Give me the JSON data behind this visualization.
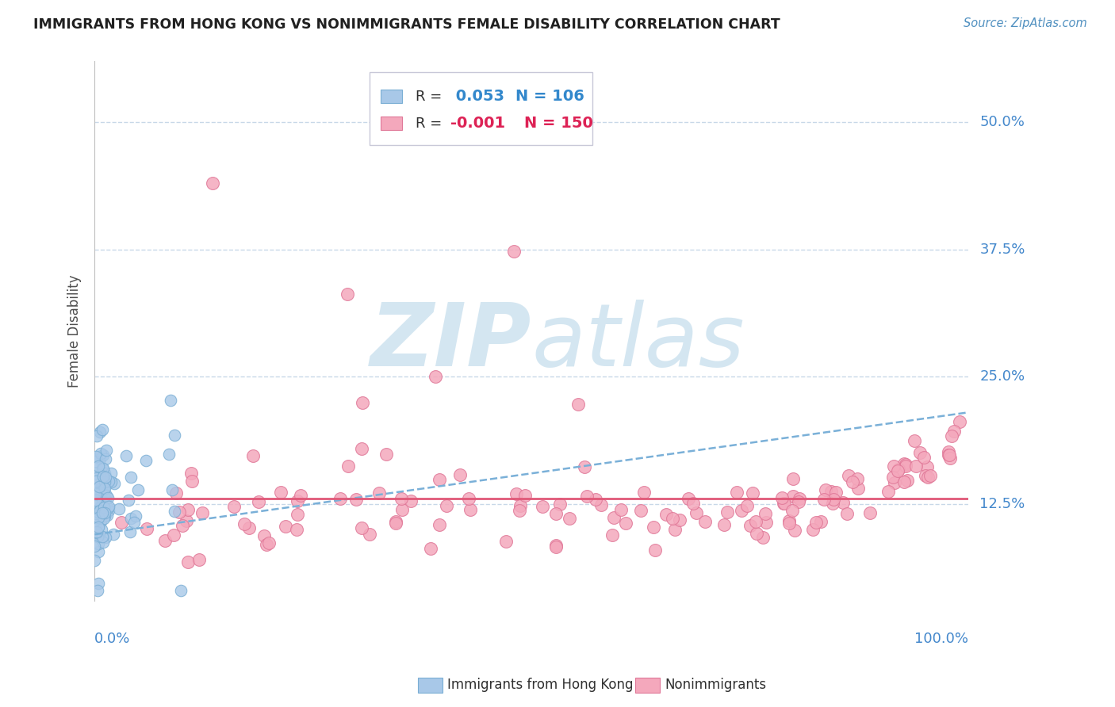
{
  "title": "IMMIGRANTS FROM HONG KONG VS NONIMMIGRANTS FEMALE DISABILITY CORRELATION CHART",
  "source": "Source: ZipAtlas.com",
  "ylabel": "Female Disability",
  "xlim": [
    0.0,
    1.0
  ],
  "ylim": [
    0.03,
    0.56
  ],
  "y_tick_positions": [
    0.125,
    0.25,
    0.375,
    0.5
  ],
  "y_tick_labels": [
    "12.5%",
    "25.0%",
    "37.5%",
    "50.0%"
  ],
  "series1_color": "#a8c8e8",
  "series1_edge": "#7aaed4",
  "series2_color": "#f4a8bc",
  "series2_edge": "#e07898",
  "trendline1_color": "#7ab0d8",
  "trendline2_color": "#e05878",
  "watermark_color": "#d0e4f0",
  "background_color": "#ffffff",
  "grid_color": "#c8d8e8",
  "title_color": "#202020",
  "source_color": "#5090c0",
  "axis_label_color": "#4488cc",
  "legend_R_color1": "#3388cc",
  "legend_R_color2": "#dd2255",
  "legend_box_color": "#e8e8f0",
  "series1_R": 0.053,
  "series1_N": 106,
  "series2_R": -0.001,
  "series2_N": 150,
  "trendline1_y0": 0.095,
  "trendline1_y1": 0.215,
  "trendline2_y": 0.13
}
